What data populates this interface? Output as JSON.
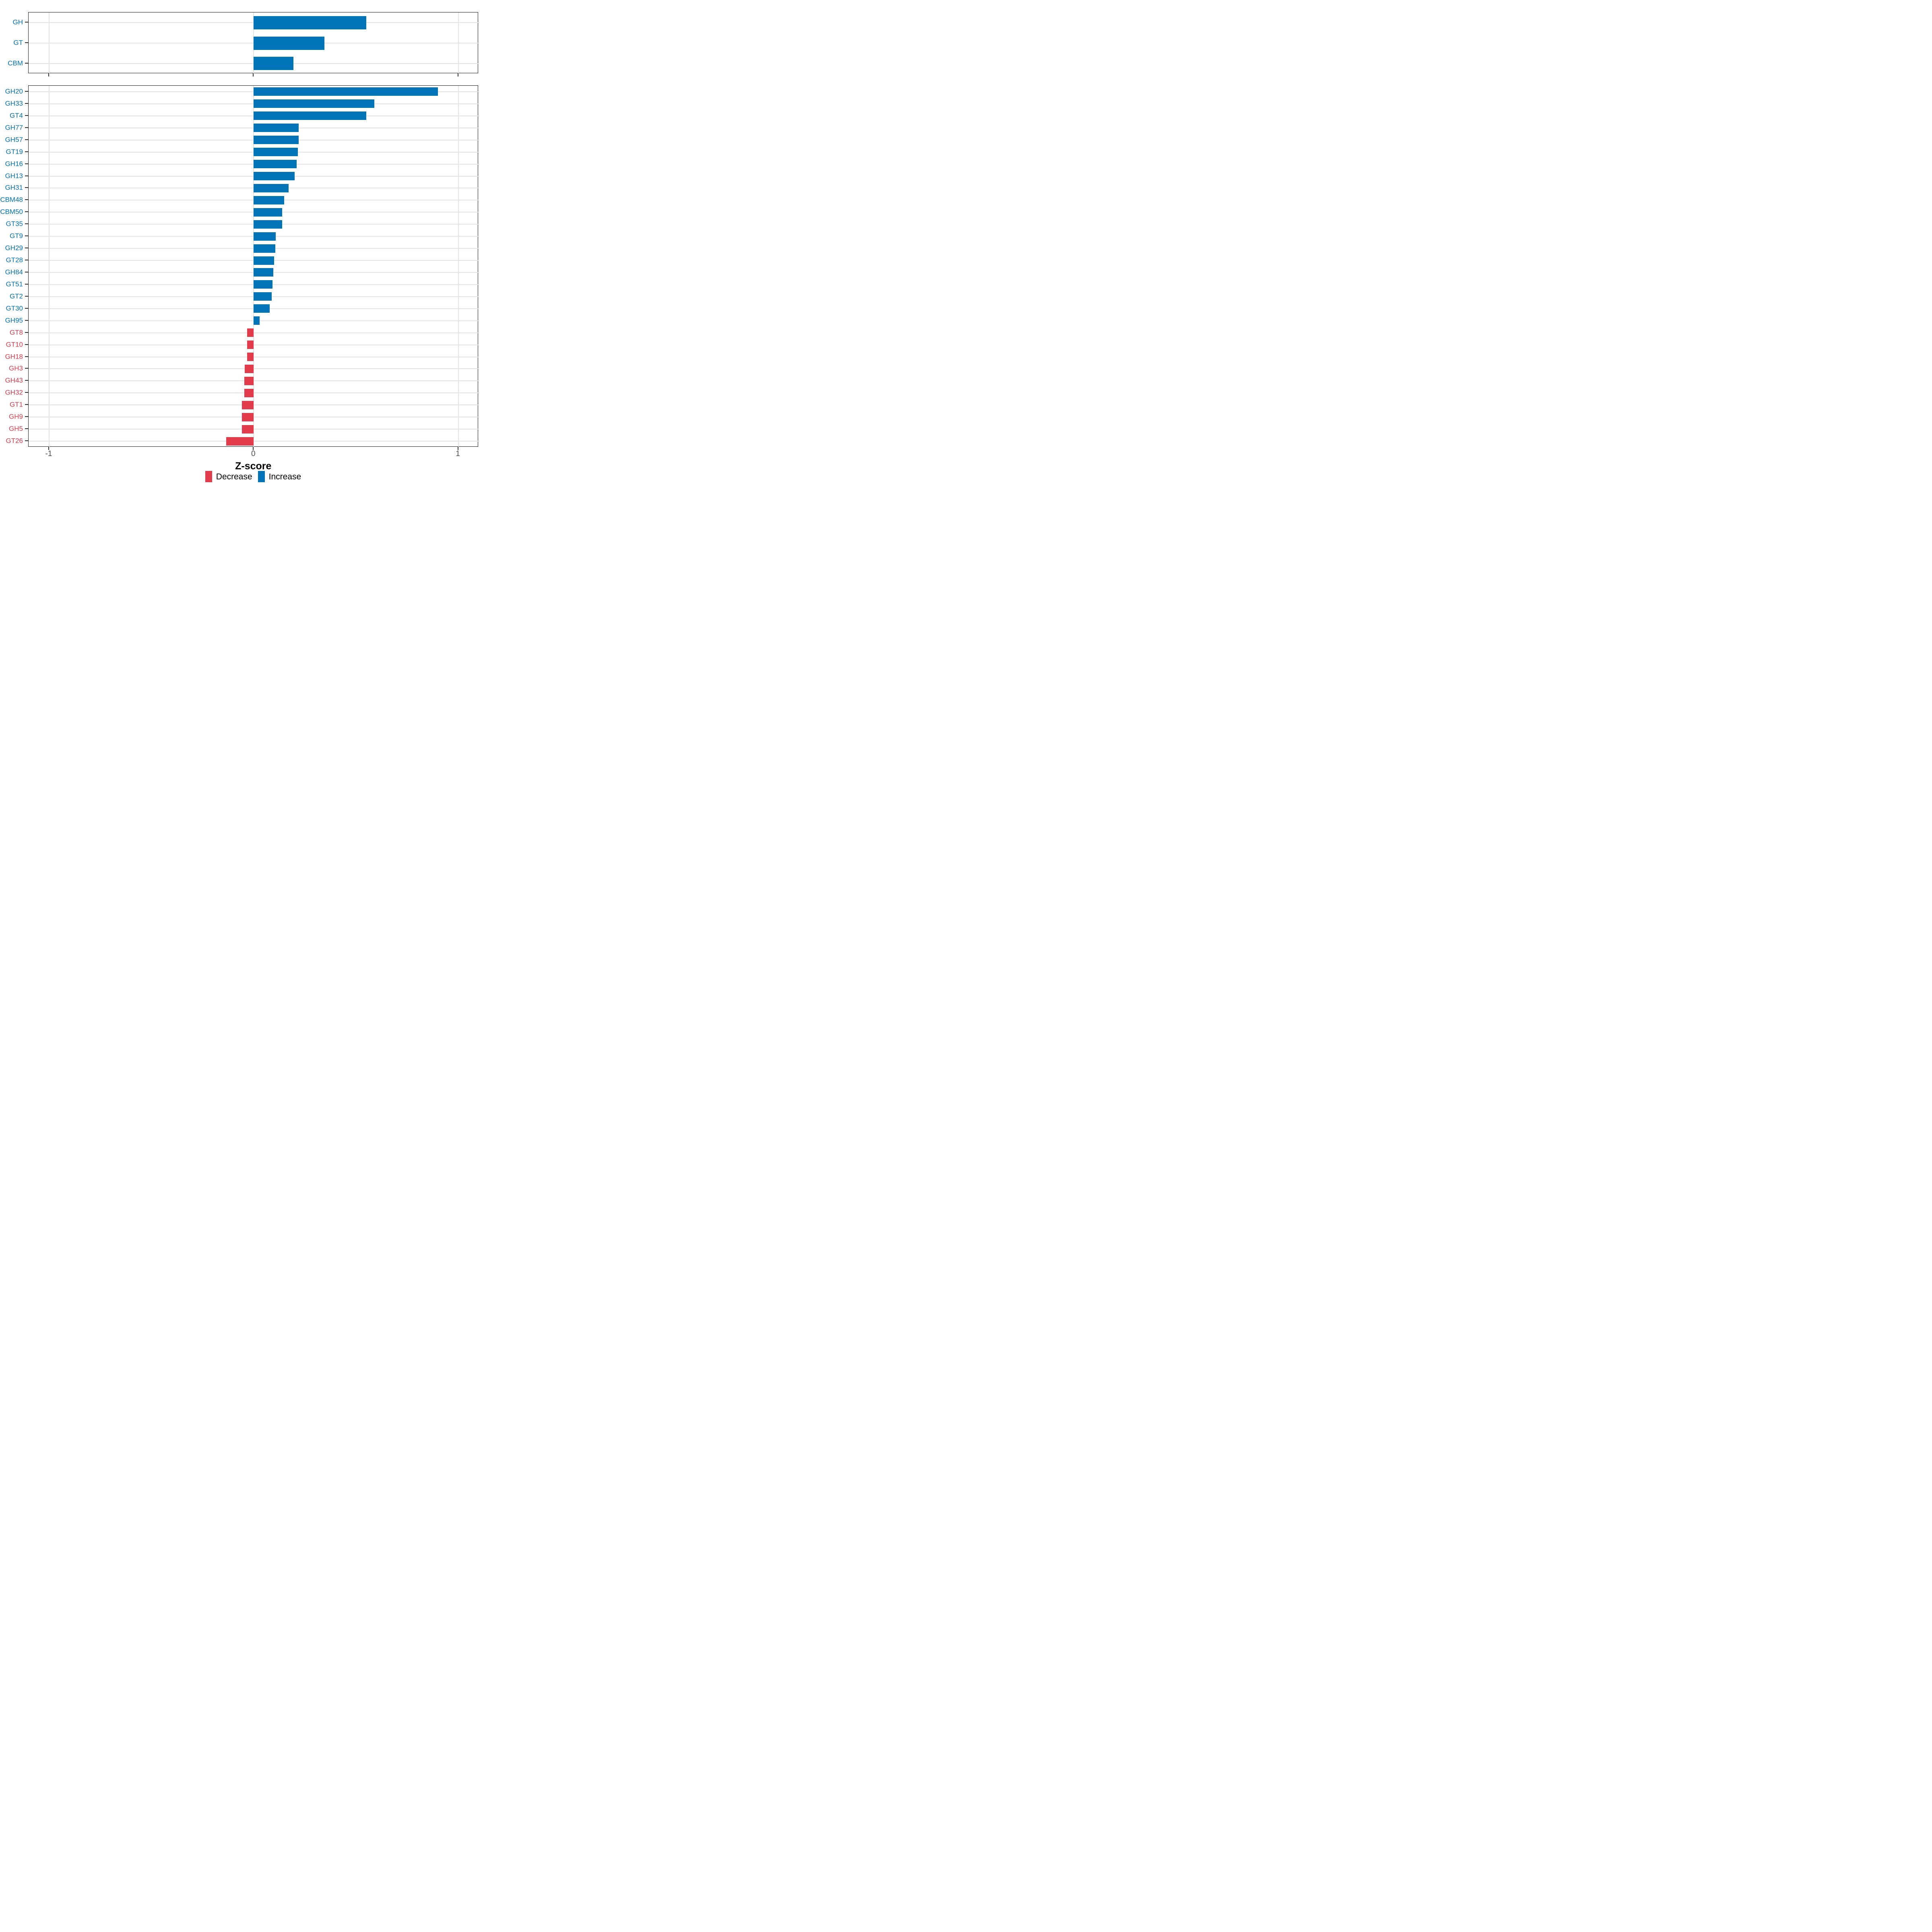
{
  "chart_data": {
    "type": "bar",
    "orientation": "horizontal",
    "xlabel": "Z-score",
    "x_tick_values": [
      -1,
      0,
      1
    ],
    "x_tick_labels": [
      "-1",
      "0",
      "1"
    ],
    "xlim": [
      -1.1,
      1.1
    ],
    "grid": "on",
    "legend_position": "bottom",
    "colors": {
      "increase": "#0074b7",
      "decrease": "#e23b4c"
    },
    "legend": [
      {
        "label": "Decrease",
        "direction": "decrease",
        "color": "#e23b4c"
      },
      {
        "label": "Increase",
        "direction": "increase",
        "color": "#0074b7"
      }
    ],
    "panels": [
      {
        "name": "cazyme-classes",
        "categories": [
          "GH",
          "GT",
          "CBM"
        ],
        "values": [
          0.55,
          0.345,
          0.195
        ],
        "directions": [
          "increase",
          "increase",
          "increase"
        ]
      },
      {
        "name": "cazyme-families",
        "categories": [
          "GH20",
          "GH33",
          "GT4",
          "GH77",
          "GH57",
          "GT19",
          "GH16",
          "GH13",
          "GH31",
          "CBM48",
          "CBM50",
          "GT35",
          "GT9",
          "GH29",
          "GT28",
          "GH84",
          "GT51",
          "GT2",
          "GT30",
          "GH95",
          "GT8",
          "GT10",
          "GH18",
          "GH3",
          "GH43",
          "GH32",
          "GT1",
          "GH9",
          "GH5",
          "GT26"
        ],
        "values": [
          0.9,
          0.59,
          0.55,
          0.22,
          0.22,
          0.215,
          0.21,
          0.2,
          0.17,
          0.15,
          0.14,
          0.14,
          0.108,
          0.106,
          0.1,
          0.095,
          0.091,
          0.088,
          0.079,
          0.029,
          -0.032,
          -0.032,
          -0.032,
          -0.044,
          -0.046,
          -0.046,
          -0.057,
          -0.057,
          -0.057,
          -0.134
        ],
        "directions": [
          "increase",
          "increase",
          "increase",
          "increase",
          "increase",
          "increase",
          "increase",
          "increase",
          "increase",
          "increase",
          "increase",
          "increase",
          "increase",
          "increase",
          "increase",
          "increase",
          "increase",
          "increase",
          "increase",
          "increase",
          "decrease",
          "decrease",
          "decrease",
          "decrease",
          "decrease",
          "decrease",
          "decrease",
          "decrease",
          "decrease",
          "decrease"
        ]
      }
    ]
  }
}
